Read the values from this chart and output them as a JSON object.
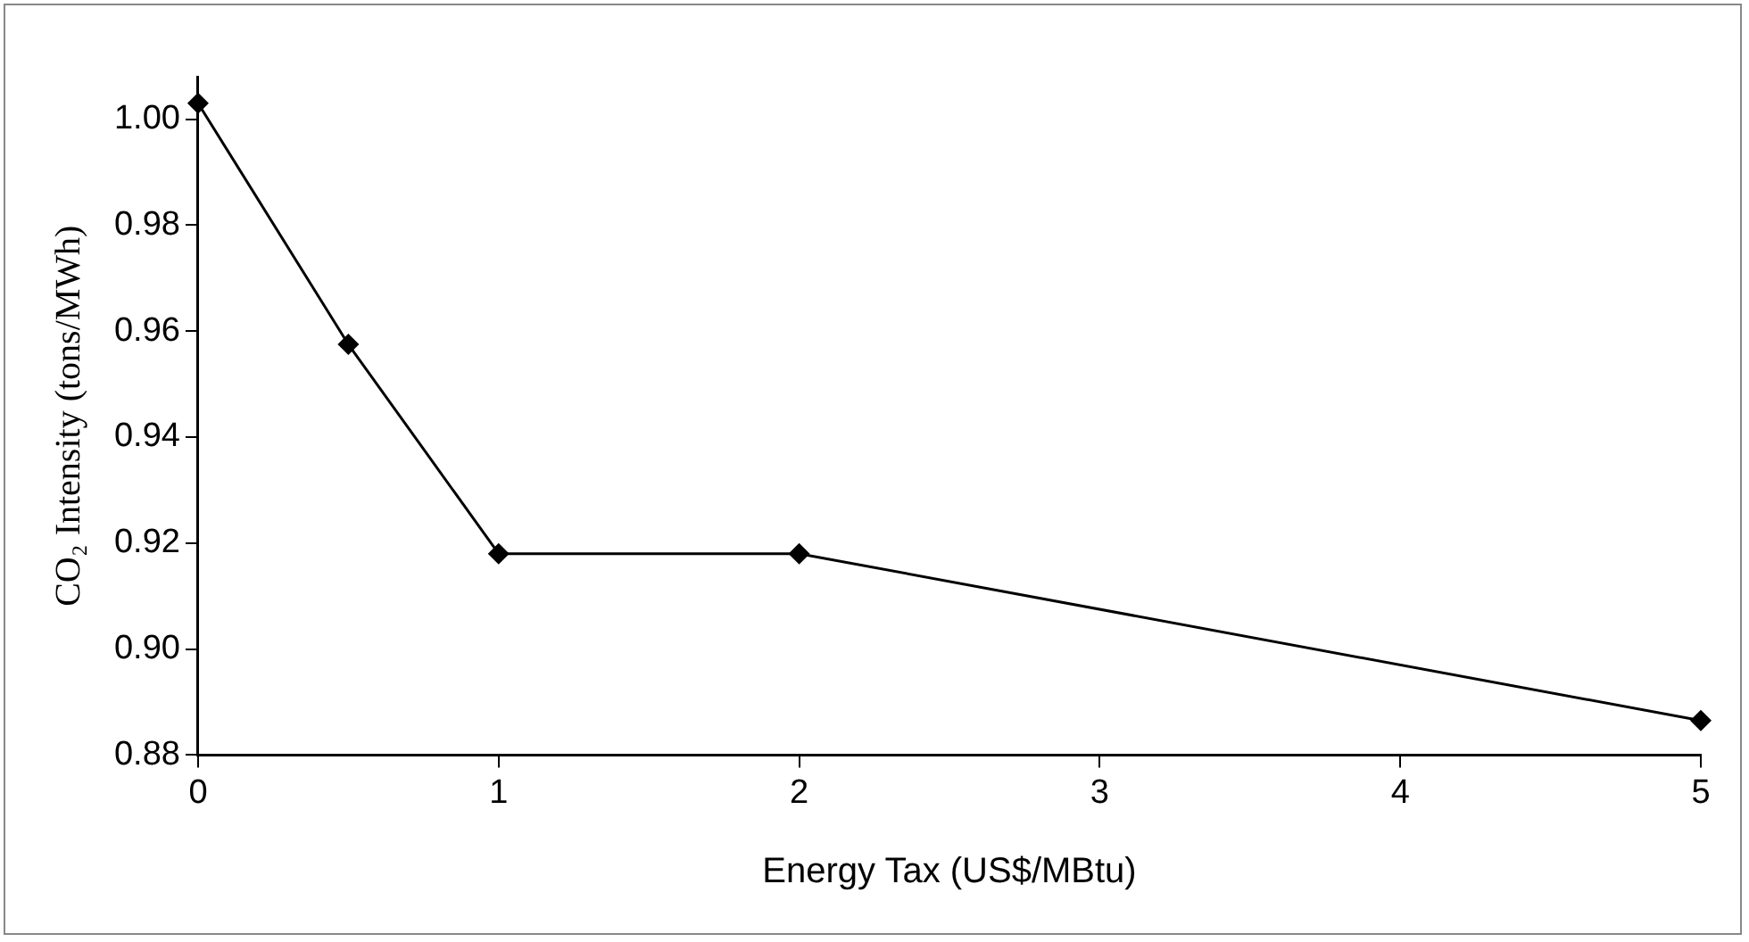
{
  "chart_data": {
    "type": "line",
    "xlabel": "Energy Tax (US$/MBtu)",
    "ylabel": "CO₂ Intensity (tons/MWh)",
    "x": [
      0,
      0.5,
      1,
      2,
      5
    ],
    "series": [
      {
        "color": "#000000",
        "values": [
          1.003,
          0.9575,
          0.918,
          0.918,
          0.8865
        ]
      }
    ],
    "xlim": [
      0,
      5
    ],
    "xticks": [
      0,
      1,
      2,
      3,
      4,
      5
    ],
    "ylim": [
      0.88,
      1.008
    ],
    "yticks": [
      {
        "value": 0.88,
        "label": "0.88"
      },
      {
        "value": 0.9,
        "label": "0.90"
      },
      {
        "value": 0.92,
        "label": "0.92"
      },
      {
        "value": 0.94,
        "label": "0.94"
      },
      {
        "value": 0.96,
        "label": "0.96"
      },
      {
        "value": 0.98,
        "label": "0.98"
      },
      {
        "value": 1,
        "label": "1.00"
      }
    ],
    "grid": false,
    "legend": false,
    "marker": "diamond",
    "line_style": "solid"
  }
}
